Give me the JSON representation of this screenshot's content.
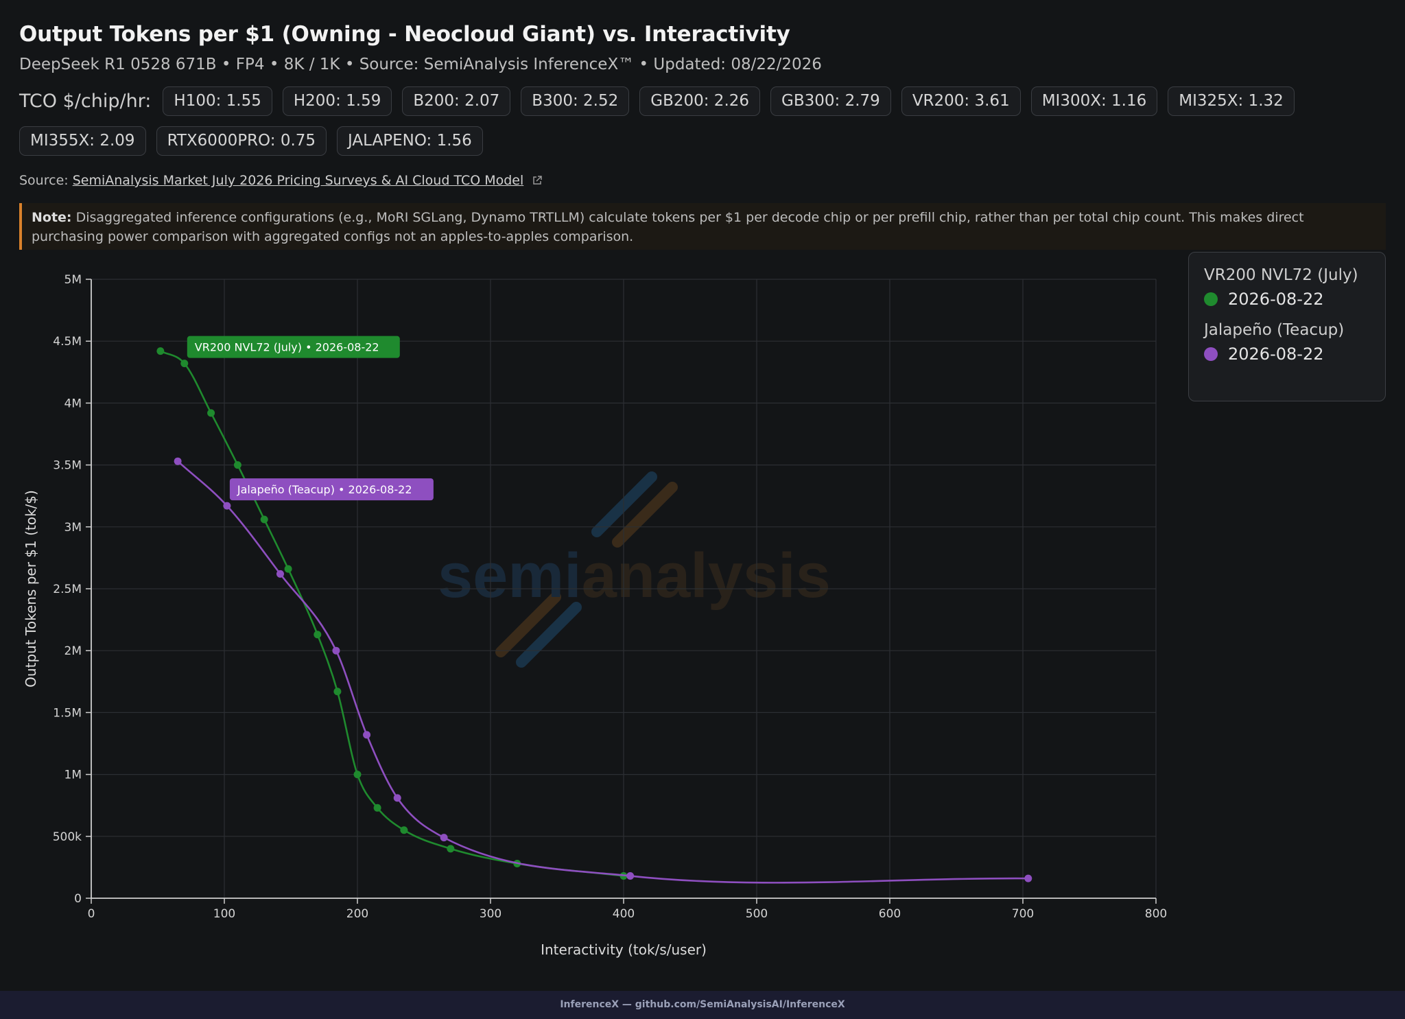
{
  "header": {
    "title": "Output Tokens per $1 (Owning - Neocloud Giant) vs. Interactivity",
    "subtitle": "DeepSeek R1 0528 671B • FP4 • 8K / 1K • Source: SemiAnalysis InferenceX™ • Updated: 08/22/2026"
  },
  "tco": {
    "label": "TCO $/chip/hr:",
    "chips": [
      "H100: 1.55",
      "H200: 1.59",
      "B200: 2.07",
      "B300: 2.52",
      "GB200: 2.26",
      "GB300: 2.79",
      "VR200: 3.61",
      "MI300X: 1.16",
      "MI325X: 1.32",
      "MI355X: 2.09",
      "RTX6000PRO: 0.75",
      "JALAPENO: 1.56"
    ]
  },
  "source": {
    "prefix": "Source:",
    "link_text": "SemiAnalysis Market July 2026 Pricing Surveys & AI Cloud TCO Model"
  },
  "note": {
    "label": "Note:",
    "text": "Disaggregated inference configurations (e.g., MoRI SGLang, Dynamo TRTLLM) calculate tokens per $1 per decode chip or per prefill chip, rather than per total chip count. This makes direct purchasing power comparison with aggregated configs not an apples-to-apples comparison."
  },
  "watermark": {
    "part1": "semi",
    "part2": "analysis"
  },
  "legend": {
    "series": [
      {
        "name": "VR200 NVL72 (July)",
        "entry": "2026-08-22",
        "color": "#1f8a2e"
      },
      {
        "name": "Jalapeño (Teacup)",
        "entry": "2026-08-22",
        "color": "#8e4fc0"
      }
    ]
  },
  "chart_data": {
    "type": "line",
    "xlabel": "Interactivity (tok/s/user)",
    "ylabel": "Output Tokens per $1 (tok/$)",
    "xlim": [
      0,
      800
    ],
    "ylim": [
      0,
      5000000
    ],
    "x_ticks": [
      "0",
      "100",
      "200",
      "300",
      "400",
      "500",
      "600",
      "700",
      "800"
    ],
    "y_ticks": [
      "0",
      "500k",
      "1M",
      "1.5M",
      "2M",
      "2.5M",
      "3M",
      "3.5M",
      "4M",
      "4.5M",
      "5M"
    ],
    "grid": true,
    "legend_position": "top-right",
    "series": [
      {
        "name": "VR200 NVL72 (July)",
        "label": "VR200 NVL72 (July) • 2026-08-22",
        "color": "#1f8a2e",
        "x": [
          52,
          70,
          90,
          110,
          130,
          148,
          170,
          185,
          200,
          215,
          235,
          270,
          320,
          400
        ],
        "y": [
          4420000,
          4320000,
          3920000,
          3500000,
          3060000,
          2660000,
          2130000,
          1670000,
          1000000,
          730000,
          550000,
          400000,
          280000,
          180000
        ]
      },
      {
        "name": "Jalapeño (Teacup)",
        "label": "Jalapeño (Teacup) • 2026-08-22",
        "color": "#8e4fc0",
        "x": [
          65,
          102,
          142,
          184,
          207,
          230,
          265,
          405,
          704
        ],
        "y": [
          3530000,
          3170000,
          2620000,
          2000000,
          1320000,
          810000,
          490000,
          180000,
          160000
        ]
      }
    ]
  },
  "footer": {
    "text": "InferenceX — github.com/SemiAnalysisAI/InferenceX"
  }
}
